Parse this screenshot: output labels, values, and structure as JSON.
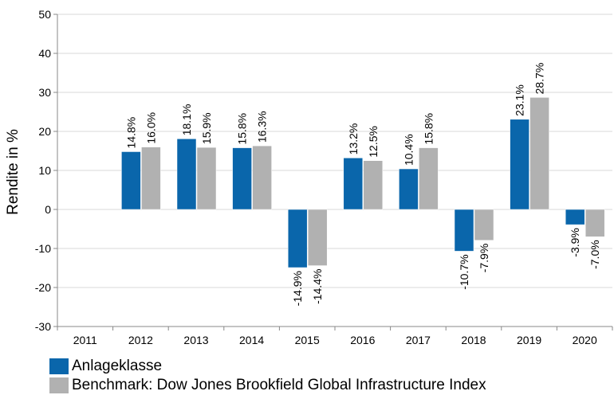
{
  "chart_data": {
    "type": "bar",
    "ylabel": "Rendite in %",
    "ylim": [
      -30,
      50
    ],
    "yticks": [
      -30,
      -20,
      -10,
      0,
      10,
      20,
      30,
      40,
      50
    ],
    "categories": [
      "2011",
      "2012",
      "2013",
      "2014",
      "2015",
      "2016",
      "2017",
      "2018",
      "2019",
      "2020"
    ],
    "series": [
      {
        "name": "Anlageklasse",
        "color": "#0a66ab",
        "values": [
          null,
          14.8,
          18.1,
          15.8,
          -14.9,
          13.2,
          10.4,
          -10.7,
          23.1,
          -3.9
        ],
        "labels": [
          "",
          "14.8%",
          "18.1%",
          "15.8%",
          "-14.9%",
          "13.2%",
          "10.4%",
          "-10.7%",
          "23.1%",
          "-3.9%"
        ]
      },
      {
        "name": "Benchmark: Dow Jones Brookfield Global Infrastructure Index",
        "color": "#b1b1b1",
        "values": [
          null,
          16.0,
          15.9,
          16.3,
          -14.4,
          12.5,
          15.8,
          -7.9,
          28.7,
          -7.0
        ],
        "labels": [
          "",
          "16.0%",
          "15.9%",
          "16.3%",
          "-14.4%",
          "12.5%",
          "15.8%",
          "-7.9%",
          "28.7%",
          "-7.0%"
        ]
      }
    ],
    "grid": true,
    "legend": "bottom-left"
  }
}
